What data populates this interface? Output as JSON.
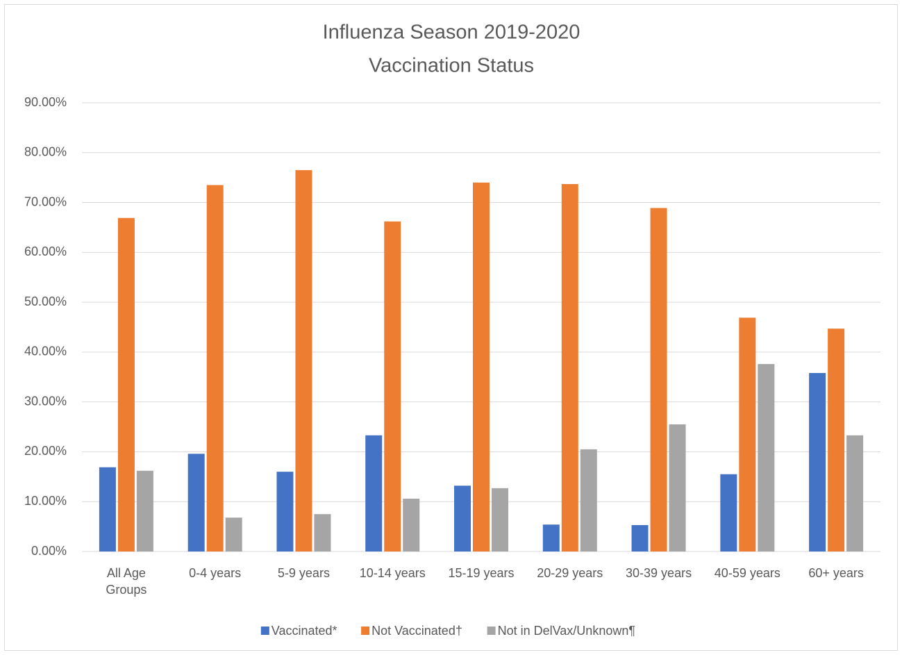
{
  "chart_data": {
    "type": "bar",
    "title": "Influenza Season 2019-2020",
    "subtitle": "Vaccination Status",
    "categories": [
      "All Age Groups",
      "0-4 years",
      "5-9 years",
      "10-14 years",
      "15-19 years",
      "20-29 years",
      "30-39 years",
      "40-59 years",
      "60+ years"
    ],
    "series": [
      {
        "name": "Vaccinated*",
        "color": "#4472c4",
        "values": [
          16.9,
          19.6,
          16.0,
          23.3,
          13.2,
          5.4,
          5.3,
          15.5,
          35.8
        ]
      },
      {
        "name": "Not Vaccinated†",
        "color": "#ed7d31",
        "values": [
          66.9,
          73.5,
          76.5,
          66.2,
          74.0,
          73.7,
          68.9,
          46.9,
          44.7
        ]
      },
      {
        "name": "Not in DelVax/Unknown¶",
        "color": "#a5a5a5",
        "values": [
          16.2,
          6.8,
          7.5,
          10.6,
          12.7,
          20.5,
          25.5,
          37.6,
          23.3
        ]
      }
    ],
    "ylim": [
      0,
      90
    ],
    "yticks": [
      {
        "value": 0,
        "label": "0.00%"
      },
      {
        "value": 10,
        "label": "10.00%"
      },
      {
        "value": 20,
        "label": "20.00%"
      },
      {
        "value": 30,
        "label": "30.00%"
      },
      {
        "value": 40,
        "label": "40.00%"
      },
      {
        "value": 50,
        "label": "50.00%"
      },
      {
        "value": 60,
        "label": "60.00%"
      },
      {
        "value": 70,
        "label": "70.00%"
      },
      {
        "value": 80,
        "label": "80.00%"
      },
      {
        "value": 90,
        "label": "90.00%"
      }
    ],
    "grid": true,
    "legend": "bottom"
  }
}
